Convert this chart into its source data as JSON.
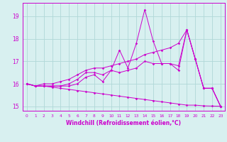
{
  "xlabel": "Windchill (Refroidissement éolien,°C)",
  "x": [
    0,
    1,
    2,
    3,
    4,
    5,
    6,
    7,
    8,
    9,
    10,
    11,
    12,
    13,
    14,
    15,
    16,
    17,
    18,
    19,
    20,
    21,
    22,
    23
  ],
  "line1": [
    16.0,
    15.9,
    15.9,
    15.9,
    15.9,
    15.9,
    16.0,
    16.3,
    16.4,
    16.1,
    16.6,
    17.5,
    16.7,
    17.8,
    19.3,
    17.9,
    16.9,
    16.9,
    16.6,
    18.4,
    17.1,
    15.8,
    15.8,
    15.0
  ],
  "line2": [
    16.0,
    15.9,
    15.9,
    15.9,
    15.9,
    16.0,
    16.2,
    16.5,
    16.5,
    16.4,
    16.6,
    16.5,
    16.6,
    16.7,
    17.0,
    16.9,
    16.9,
    16.9,
    16.8,
    18.4,
    17.1,
    15.8,
    15.8,
    15.0
  ],
  "line3": [
    16.0,
    15.9,
    16.0,
    16.0,
    16.1,
    16.2,
    16.4,
    16.6,
    16.7,
    16.7,
    16.8,
    16.9,
    17.0,
    17.1,
    17.3,
    17.4,
    17.5,
    17.6,
    17.8,
    18.4,
    17.1,
    15.8,
    15.8,
    15.0
  ],
  "line4": [
    16.0,
    15.9,
    15.9,
    15.85,
    15.8,
    15.75,
    15.7,
    15.65,
    15.6,
    15.55,
    15.5,
    15.45,
    15.4,
    15.35,
    15.3,
    15.25,
    15.2,
    15.15,
    15.1,
    15.05,
    15.05,
    15.02,
    15.01,
    15.0
  ],
  "color": "#cc00cc",
  "bg_color": "#d8f0f0",
  "grid_color": "#b0d8d8",
  "ylim": [
    14.8,
    19.6
  ],
  "yticks": [
    15,
    16,
    17,
    18,
    19
  ],
  "xlim": [
    -0.5,
    23.5
  ]
}
